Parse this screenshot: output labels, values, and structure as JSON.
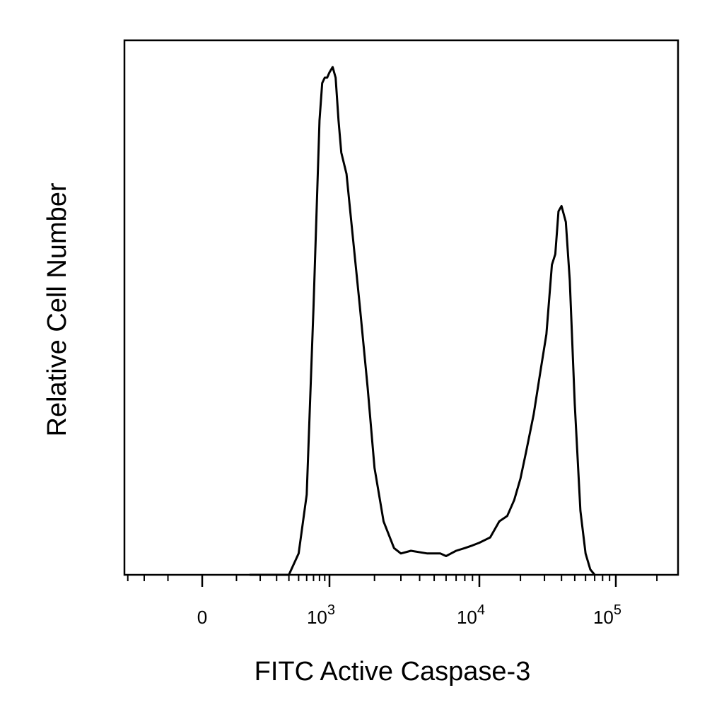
{
  "chart_data": {
    "type": "histogram",
    "title": "",
    "xlabel": "FITC Active Caspase-3",
    "ylabel": "Relative Cell Number",
    "x_scale": "biexponential",
    "grid": false,
    "legend": "none",
    "line_color": "#000000",
    "x_ticks": [
      {
        "value": 0,
        "base": "0",
        "exp": ""
      },
      {
        "value": 1000,
        "base": "10",
        "exp": "3"
      },
      {
        "value": 10000,
        "base": "10",
        "exp": "4"
      },
      {
        "value": 100000,
        "base": "10",
        "exp": "5"
      }
    ],
    "series": [
      {
        "x": [
          150,
          400,
          500,
          600,
          700,
          800,
          850,
          900,
          950,
          1000,
          1050,
          1100,
          1150,
          1200,
          1300,
          1400,
          1600,
          1800,
          2000,
          2300,
          2700,
          3000,
          3500,
          4500,
          5500,
          6000,
          7000,
          8000,
          9000,
          10000,
          12000,
          14000,
          16000,
          18000,
          20000,
          22000,
          25000,
          28000,
          31000,
          34000,
          36000,
          38000,
          40000,
          43000,
          46000,
          50000,
          55000,
          60000,
          65000,
          70000
        ],
        "y": [
          0,
          0,
          0.04,
          0.15,
          0.5,
          0.85,
          0.92,
          0.93,
          0.93,
          0.94,
          0.95,
          0.93,
          0.85,
          0.79,
          0.75,
          0.66,
          0.5,
          0.35,
          0.2,
          0.1,
          0.05,
          0.04,
          0.045,
          0.04,
          0.04,
          0.035,
          0.045,
          0.05,
          0.055,
          0.06,
          0.07,
          0.1,
          0.11,
          0.14,
          0.18,
          0.23,
          0.3,
          0.38,
          0.45,
          0.58,
          0.6,
          0.68,
          0.69,
          0.66,
          0.55,
          0.32,
          0.12,
          0.04,
          0.01,
          0
        ]
      }
    ],
    "ylim": [
      0,
      1
    ]
  }
}
